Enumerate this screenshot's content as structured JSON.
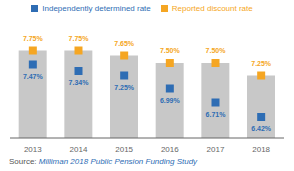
{
  "chart_data": {
    "type": "bar",
    "categories": [
      "2013",
      "2014",
      "2015",
      "2016",
      "2017",
      "2018"
    ],
    "color": "#c8c8c8",
    "series": [
      {
        "name": "Reported discount rate",
        "type": "scatter",
        "marker": "square",
        "color": "#f5a623",
        "values": [
          7.75,
          7.75,
          7.65,
          7.5,
          7.5,
          7.25
        ],
        "value_labels": [
          "7.75%",
          "7.75%",
          "7.65%",
          "7.50%",
          "7.50%",
          "7.25%"
        ]
      },
      {
        "name": "Independently determined rate",
        "type": "scatter",
        "marker": "square",
        "color": "#2e6db4",
        "values": [
          7.47,
          7.34,
          7.25,
          6.99,
          6.71,
          6.42
        ],
        "value_labels": [
          "7.47%",
          "7.34%",
          "7.25%",
          "6.99%",
          "6.71%",
          "6.42%"
        ]
      }
    ],
    "ylim": [
      6.0,
      8.5
    ],
    "data_labels": true,
    "legend": "top",
    "tick_labels": "x",
    "annotations": [
      {
        "text": "Source: ",
        "color": "#555555"
      },
      {
        "text": "Milliman 2018 Public Pension Funding Study",
        "color": "#2e6db4"
      }
    ]
  }
}
